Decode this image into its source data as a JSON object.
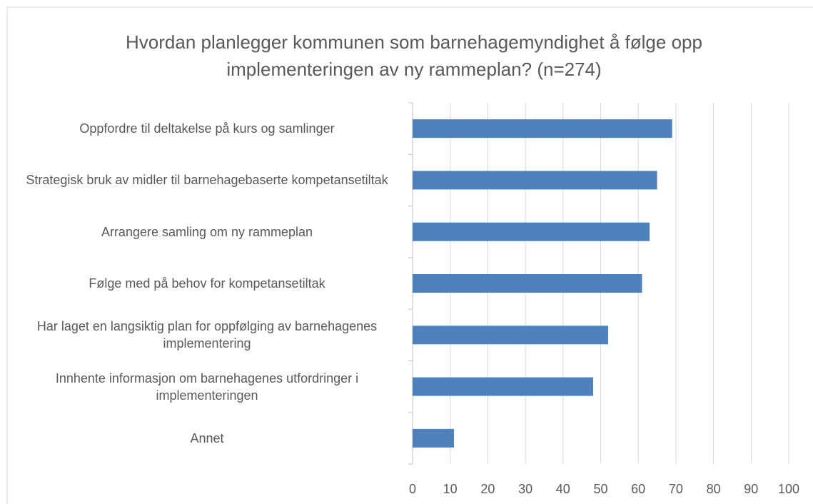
{
  "chart_data": {
    "type": "bar",
    "orientation": "horizontal",
    "title": "Hvordan planlegger kommunen som barnehagemyndighet å følge opp implementeringen av ny rammeplan? (n=274)",
    "categories": [
      "Oppfordre til deltakelse på kurs og samlinger",
      "Strategisk bruk av midler til barnehagebaserte kompetansetiltak",
      "Arrangere samling om ny rammeplan",
      "Følge med på behov for kompetansetiltak",
      "Har laget en langsiktig plan for oppfølging av barnehagenes implementering",
      "Innhente informasjon om barnehagenes utfordringer i implementeringen",
      "Annet"
    ],
    "values": [
      69,
      65,
      63,
      61,
      52,
      48,
      11
    ],
    "color": "#4f81bd",
    "xlim": [
      0,
      100
    ],
    "xticks": [
      0,
      10,
      20,
      30,
      40,
      50,
      60,
      70,
      80,
      90,
      100
    ],
    "grid": true
  }
}
